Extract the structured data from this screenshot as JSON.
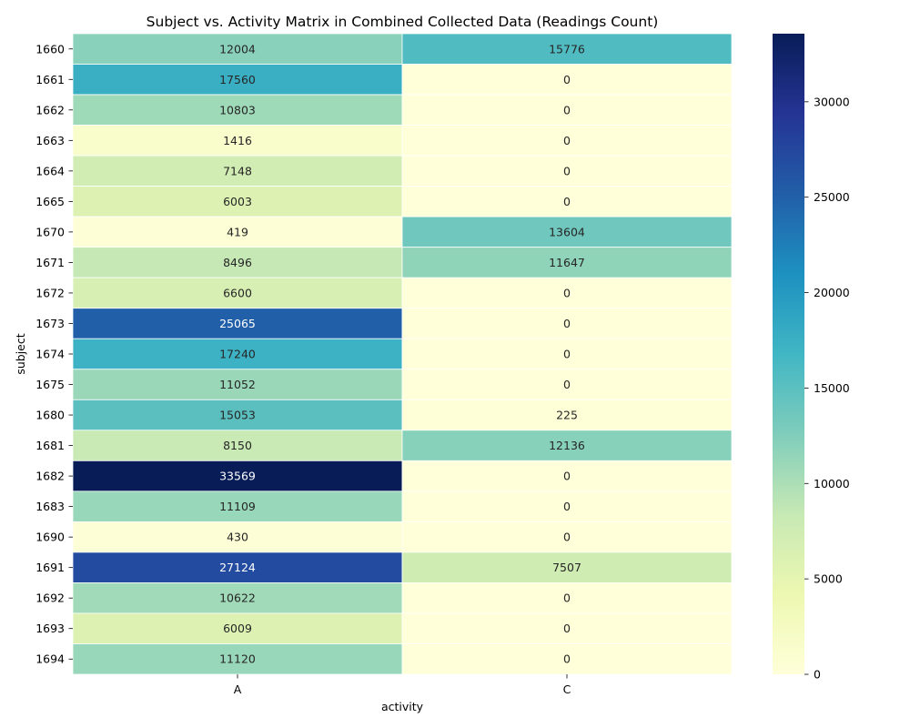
{
  "chart_data": {
    "type": "heatmap",
    "title": "Subject vs. Activity Matrix in Combined Collected Data (Readings Count)",
    "xlabel": "activity",
    "ylabel": "subject",
    "x_categories": [
      "A",
      "C"
    ],
    "y_categories": [
      "1660",
      "1661",
      "1662",
      "1663",
      "1664",
      "1665",
      "1670",
      "1671",
      "1672",
      "1673",
      "1674",
      "1675",
      "1680",
      "1681",
      "1682",
      "1683",
      "1690",
      "1691",
      "1692",
      "1693",
      "1694"
    ],
    "values": [
      [
        12004,
        15776
      ],
      [
        17560,
        0
      ],
      [
        10803,
        0
      ],
      [
        1416,
        0
      ],
      [
        7148,
        0
      ],
      [
        6003,
        0
      ],
      [
        419,
        13604
      ],
      [
        8496,
        11647
      ],
      [
        6600,
        0
      ],
      [
        25065,
        0
      ],
      [
        17240,
        0
      ],
      [
        11052,
        0
      ],
      [
        15053,
        225
      ],
      [
        8150,
        12136
      ],
      [
        33569,
        0
      ],
      [
        11109,
        0
      ],
      [
        430,
        0
      ],
      [
        27124,
        7507
      ],
      [
        10622,
        0
      ],
      [
        6009,
        0
      ],
      [
        11120,
        0
      ]
    ],
    "colormap": "YlGnBu",
    "colorbar": {
      "range": [
        0,
        33569
      ],
      "ticks": [
        0,
        5000,
        10000,
        15000,
        20000,
        25000,
        30000
      ]
    },
    "grid": false,
    "annotations": true
  }
}
